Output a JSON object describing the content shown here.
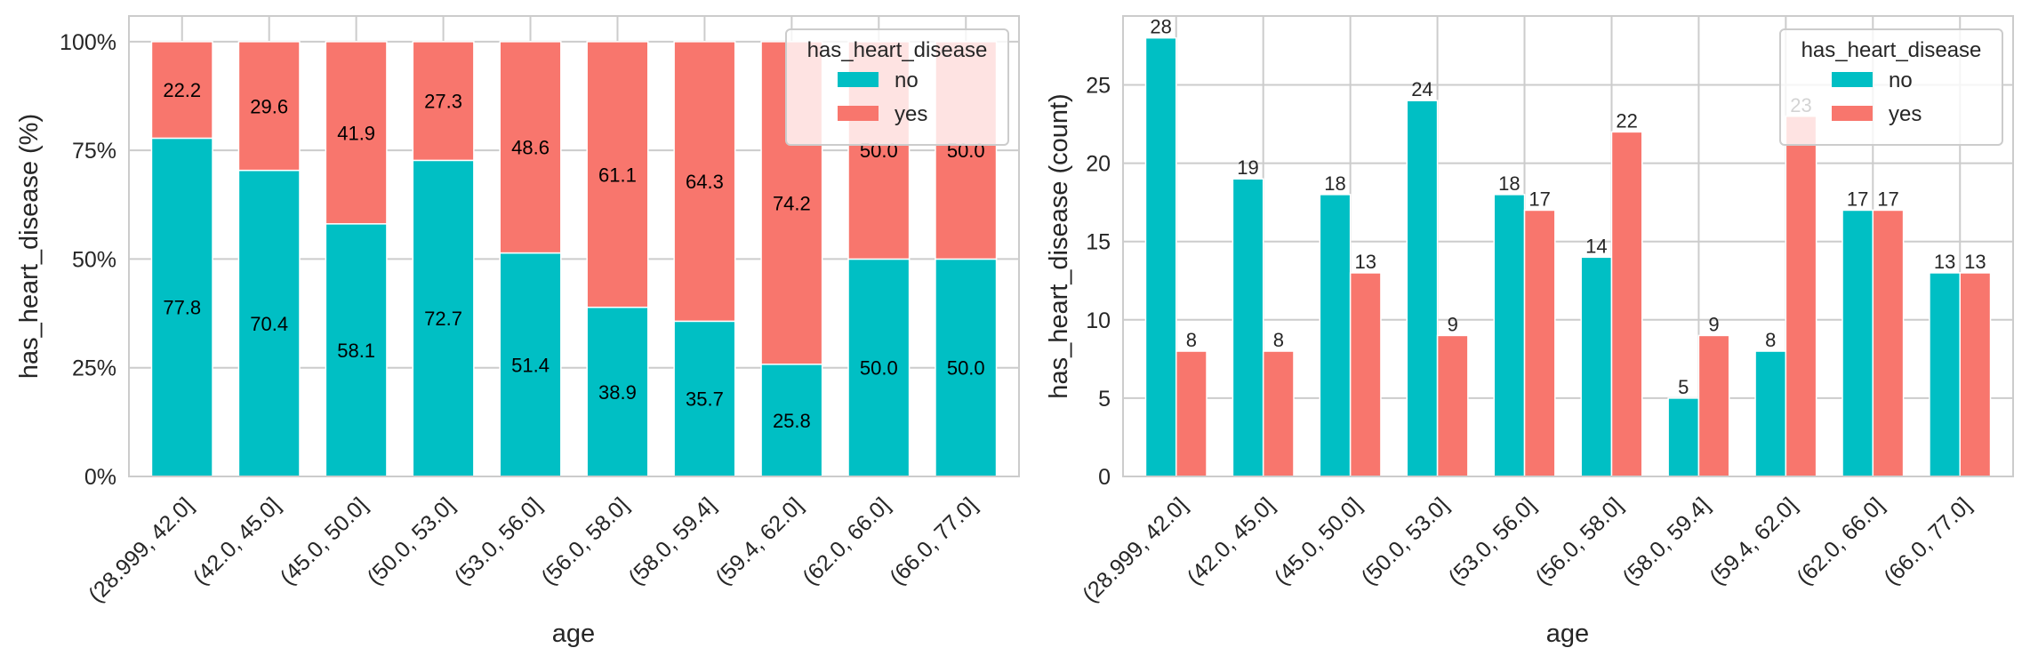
{
  "colors": {
    "no": "#00bfc4",
    "yes": "#f8766d",
    "grid": "#cccccc",
    "text": "#262626"
  },
  "chart_data": [
    {
      "type": "bar",
      "stacked": true,
      "title": "",
      "xlabel": "age",
      "ylabel": "has_heart_disease (%)",
      "ylim": [
        0,
        105.9
      ],
      "yticks": [
        0,
        25,
        50,
        75,
        100
      ],
      "ytick_labels": [
        "0%",
        "25%",
        "50%",
        "75%",
        "100%"
      ],
      "grid": true,
      "categories": [
        "(28.999, 42.0]",
        "(42.0, 45.0]",
        "(45.0, 50.0]",
        "(50.0, 53.0]",
        "(53.0, 56.0]",
        "(56.0, 58.0]",
        "(58.0, 59.4]",
        "(59.4, 62.0]",
        "(62.0, 66.0]",
        "(66.0, 77.0]"
      ],
      "series": [
        {
          "name": "no",
          "values": [
            77.8,
            70.4,
            58.1,
            72.7,
            51.4,
            38.9,
            35.7,
            25.8,
            50.0,
            50.0
          ]
        },
        {
          "name": "yes",
          "values": [
            22.2,
            29.6,
            41.9,
            27.3,
            48.6,
            61.1,
            64.3,
            74.2,
            50.0,
            50.0
          ]
        }
      ],
      "legend": {
        "title": "has_heart_disease",
        "entries": [
          "no",
          "yes"
        ],
        "placement": "top-right"
      }
    },
    {
      "type": "bar",
      "stacked": false,
      "title": "",
      "xlabel": "age",
      "ylabel": "has_heart_disease (count)",
      "ylim": [
        0,
        29.4
      ],
      "yticks": [
        0,
        5,
        10,
        15,
        20,
        25
      ],
      "ytick_labels": [
        "0",
        "5",
        "10",
        "15",
        "20",
        "25"
      ],
      "grid": true,
      "categories": [
        "(28.999, 42.0]",
        "(42.0, 45.0]",
        "(45.0, 50.0]",
        "(50.0, 53.0]",
        "(53.0, 56.0]",
        "(56.0, 58.0]",
        "(58.0, 59.4]",
        "(59.4, 62.0]",
        "(62.0, 66.0]",
        "(66.0, 77.0]"
      ],
      "series": [
        {
          "name": "no",
          "values": [
            28,
            19,
            18,
            24,
            18,
            14,
            5,
            8,
            17,
            13
          ]
        },
        {
          "name": "yes",
          "values": [
            8,
            8,
            13,
            9,
            17,
            22,
            9,
            23,
            17,
            13
          ]
        }
      ],
      "legend": {
        "title": "has_heart_disease",
        "entries": [
          "no",
          "yes"
        ],
        "placement": "top-right"
      }
    }
  ]
}
